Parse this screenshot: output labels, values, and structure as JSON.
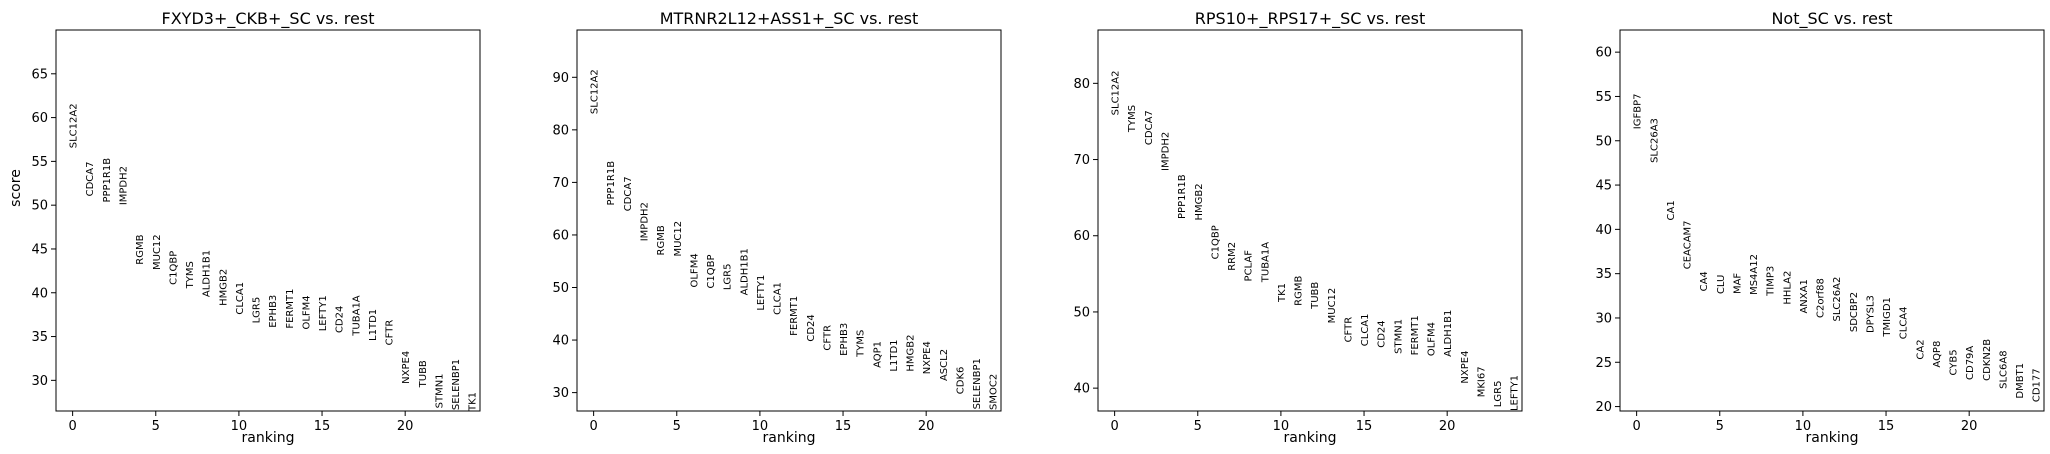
{
  "figure": {
    "ylabel": "score",
    "xlabel": "ranking"
  },
  "chart_data": [
    {
      "type": "scatter",
      "title": "FXYD3+_CKB+_SC vs. rest",
      "xlabel": "ranking",
      "ylabel": "score",
      "xlim": [
        -1,
        24.5
      ],
      "ylim": [
        26.5,
        70
      ],
      "xticks": [
        0,
        5,
        10,
        15,
        20
      ],
      "yticks": [
        30,
        35,
        40,
        45,
        50,
        55,
        60,
        65
      ],
      "genes": [
        {
          "rank": 0,
          "name": "SLC12A2",
          "score": 56.5
        },
        {
          "rank": 1,
          "name": "CDCA7",
          "score": 51.0
        },
        {
          "rank": 2,
          "name": "PPP1R1B",
          "score": 50.3
        },
        {
          "rank": 3,
          "name": "IMPDH2",
          "score": 50.0
        },
        {
          "rank": 4,
          "name": "RGMB",
          "score": 43.2
        },
        {
          "rank": 5,
          "name": "MUC12",
          "score": 42.6
        },
        {
          "rank": 6,
          "name": "C1QBP",
          "score": 40.9
        },
        {
          "rank": 7,
          "name": "TYMS",
          "score": 40.5
        },
        {
          "rank": 8,
          "name": "ALDH1B1",
          "score": 39.5
        },
        {
          "rank": 9,
          "name": "HMGB2",
          "score": 38.5
        },
        {
          "rank": 10,
          "name": "CLCA1",
          "score": 37.5
        },
        {
          "rank": 11,
          "name": "LGR5",
          "score": 36.5
        },
        {
          "rank": 12,
          "name": "EPHB3",
          "score": 36.0
        },
        {
          "rank": 13,
          "name": "FERMT1",
          "score": 35.9
        },
        {
          "rank": 14,
          "name": "OLFM4",
          "score": 35.8
        },
        {
          "rank": 15,
          "name": "LEFTY1",
          "score": 35.6
        },
        {
          "rank": 16,
          "name": "CD24",
          "score": 35.4
        },
        {
          "rank": 17,
          "name": "TUBA1A",
          "score": 35.1
        },
        {
          "rank": 18,
          "name": "L1TD1",
          "score": 34.5
        },
        {
          "rank": 19,
          "name": "CFTR",
          "score": 34.0
        },
        {
          "rank": 20,
          "name": "NXPE4",
          "score": 29.6
        },
        {
          "rank": 21,
          "name": "TUBB",
          "score": 29.2
        },
        {
          "rank": 22,
          "name": "STMN1",
          "score": 26.8
        },
        {
          "rank": 23,
          "name": "SELENBP1",
          "score": 26.6
        },
        {
          "rank": 24,
          "name": "TK1",
          "score": 26.5
        }
      ]
    },
    {
      "type": "scatter",
      "title": "MTRNR2L12+ASS1+_SC vs. rest",
      "xlabel": "ranking",
      "ylabel": "",
      "xlim": [
        -1,
        24.5
      ],
      "ylim": [
        26.5,
        99
      ],
      "xticks": [
        0,
        5,
        10,
        15,
        20
      ],
      "yticks": [
        30,
        40,
        50,
        60,
        70,
        80,
        90
      ],
      "genes": [
        {
          "rank": 0,
          "name": "SLC12A2",
          "score": 83.0
        },
        {
          "rank": 1,
          "name": "PPP1R1B",
          "score": 65.6
        },
        {
          "rank": 2,
          "name": "CDCA7",
          "score": 64.5
        },
        {
          "rank": 3,
          "name": "IMPDH2",
          "score": 58.8
        },
        {
          "rank": 4,
          "name": "RGMB",
          "score": 56.1
        },
        {
          "rank": 5,
          "name": "MUC12",
          "score": 55.9
        },
        {
          "rank": 6,
          "name": "OLFM4",
          "score": 50.0
        },
        {
          "rank": 7,
          "name": "C1QBP",
          "score": 49.8
        },
        {
          "rank": 8,
          "name": "LGR5",
          "score": 49.5
        },
        {
          "rank": 9,
          "name": "ALDH1B1",
          "score": 48.5
        },
        {
          "rank": 10,
          "name": "LEFTY1",
          "score": 45.6
        },
        {
          "rank": 11,
          "name": "CLCA1",
          "score": 44.8
        },
        {
          "rank": 12,
          "name": "FERMT1",
          "score": 40.8
        },
        {
          "rank": 13,
          "name": "CD24",
          "score": 39.7
        },
        {
          "rank": 14,
          "name": "CFTR",
          "score": 38.0
        },
        {
          "rank": 15,
          "name": "EPHB3",
          "score": 37.0
        },
        {
          "rank": 16,
          "name": "TYMS",
          "score": 36.8
        },
        {
          "rank": 17,
          "name": "AQP1",
          "score": 34.7
        },
        {
          "rank": 18,
          "name": "L1TD1",
          "score": 34.0
        },
        {
          "rank": 19,
          "name": "HMGB2",
          "score": 34.0
        },
        {
          "rank": 20,
          "name": "NXPE4",
          "score": 33.5
        },
        {
          "rank": 21,
          "name": "ASCL2",
          "score": 32.2
        },
        {
          "rank": 22,
          "name": "CDK6",
          "score": 29.7
        },
        {
          "rank": 23,
          "name": "SELENBP1",
          "score": 26.8
        },
        {
          "rank": 24,
          "name": "SMOC2",
          "score": 26.7
        }
      ]
    },
    {
      "type": "scatter",
      "title": "RPS10+_RPS17+_SC vs. rest",
      "xlabel": "ranking",
      "ylabel": "",
      "xlim": [
        -1,
        24.5
      ],
      "ylim": [
        37,
        87
      ],
      "xticks": [
        0,
        5,
        10,
        15,
        20
      ],
      "yticks": [
        40,
        50,
        60,
        70,
        80
      ],
      "genes": [
        {
          "rank": 0,
          "name": "SLC12A2",
          "score": 75.8
        },
        {
          "rank": 1,
          "name": "TYMS",
          "score": 73.6
        },
        {
          "rank": 2,
          "name": "CDCA7",
          "score": 71.9
        },
        {
          "rank": 3,
          "name": "IMPDH2",
          "score": 68.5
        },
        {
          "rank": 4,
          "name": "PPP1R1B",
          "score": 62.2
        },
        {
          "rank": 5,
          "name": "HMGB2",
          "score": 62.0
        },
        {
          "rank": 6,
          "name": "C1QBP",
          "score": 56.9
        },
        {
          "rank": 7,
          "name": "RRM2",
          "score": 55.4
        },
        {
          "rank": 8,
          "name": "PCLAF",
          "score": 54.0
        },
        {
          "rank": 9,
          "name": "TUBA1A",
          "score": 53.9
        },
        {
          "rank": 10,
          "name": "TK1",
          "score": 51.3
        },
        {
          "rank": 11,
          "name": "RGMB",
          "score": 50.8
        },
        {
          "rank": 12,
          "name": "TUBB",
          "score": 50.4
        },
        {
          "rank": 13,
          "name": "MUC12",
          "score": 48.5
        },
        {
          "rank": 14,
          "name": "CFTR",
          "score": 46.0
        },
        {
          "rank": 15,
          "name": "CLCA1",
          "score": 45.5
        },
        {
          "rank": 16,
          "name": "CD24",
          "score": 45.3
        },
        {
          "rank": 17,
          "name": "STMN1",
          "score": 44.5
        },
        {
          "rank": 18,
          "name": "FERMT1",
          "score": 44.3
        },
        {
          "rank": 19,
          "name": "OLFM4",
          "score": 44.2
        },
        {
          "rank": 20,
          "name": "ALDH1B1",
          "score": 44.1
        },
        {
          "rank": 21,
          "name": "NXPE4",
          "score": 40.6
        },
        {
          "rank": 22,
          "name": "MKI67",
          "score": 38.8
        },
        {
          "rank": 23,
          "name": "LGR5",
          "score": 37.5
        },
        {
          "rank": 24,
          "name": "LEFTY1",
          "score": 37.0
        }
      ]
    },
    {
      "type": "scatter",
      "title": "Not_SC vs. rest",
      "xlabel": "ranking",
      "ylabel": "",
      "xlim": [
        -1,
        24.5
      ],
      "ylim": [
        19.5,
        62.5
      ],
      "xticks": [
        0,
        5,
        10,
        15,
        20
      ],
      "yticks": [
        20,
        25,
        30,
        35,
        40,
        45,
        50,
        55,
        60
      ],
      "genes": [
        {
          "rank": 0,
          "name": "IGFBP7",
          "score": 51.3
        },
        {
          "rank": 1,
          "name": "SLC26A3",
          "score": 47.5
        },
        {
          "rank": 2,
          "name": "CA1",
          "score": 41.0
        },
        {
          "rank": 3,
          "name": "CEACAM7",
          "score": 35.5
        },
        {
          "rank": 4,
          "name": "CA4",
          "score": 33.0
        },
        {
          "rank": 5,
          "name": "CLU",
          "score": 32.7
        },
        {
          "rank": 6,
          "name": "MAF",
          "score": 32.7
        },
        {
          "rank": 7,
          "name": "MS4A12",
          "score": 32.6
        },
        {
          "rank": 8,
          "name": "TIMP3",
          "score": 32.5
        },
        {
          "rank": 9,
          "name": "HHLA2",
          "score": 31.5
        },
        {
          "rank": 10,
          "name": "ANXA1",
          "score": 30.5
        },
        {
          "rank": 11,
          "name": "C2orf88",
          "score": 30.0
        },
        {
          "rank": 12,
          "name": "SLC26A2",
          "score": 29.6
        },
        {
          "rank": 13,
          "name": "SDCBP2",
          "score": 28.4
        },
        {
          "rank": 14,
          "name": "DPYSL3",
          "score": 28.3
        },
        {
          "rank": 15,
          "name": "TMIGD1",
          "score": 27.9
        },
        {
          "rank": 16,
          "name": "CLCA4",
          "score": 27.6
        },
        {
          "rank": 17,
          "name": "CA2",
          "score": 25.3
        },
        {
          "rank": 18,
          "name": "AQP8",
          "score": 24.4
        },
        {
          "rank": 19,
          "name": "CYB5",
          "score": 23.5
        },
        {
          "rank": 20,
          "name": "CD79A",
          "score": 23.0
        },
        {
          "rank": 21,
          "name": "CDKN2B",
          "score": 22.9
        },
        {
          "rank": 22,
          "name": "SLC6A8",
          "score": 22.0
        },
        {
          "rank": 23,
          "name": "DMBT1",
          "score": 20.9
        },
        {
          "rank": 24,
          "name": "CD177",
          "score": 20.5
        }
      ]
    }
  ]
}
